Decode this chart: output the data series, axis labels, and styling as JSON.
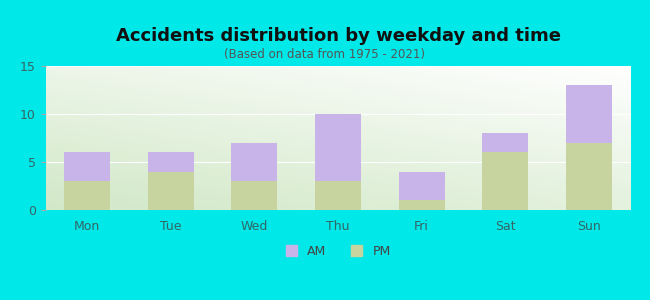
{
  "categories": [
    "Mon",
    "Tue",
    "Wed",
    "Thu",
    "Fri",
    "Sat",
    "Sun"
  ],
  "pm_values": [
    3,
    4,
    3,
    3,
    1,
    6,
    7
  ],
  "am_values": [
    3,
    2,
    4,
    7,
    3,
    2,
    6
  ],
  "am_color": "#c8b4e8",
  "pm_color": "#c8d4a0",
  "title": "Accidents distribution by weekday and time",
  "subtitle": "(Based on data from 1975 - 2021)",
  "ylim": [
    0,
    15
  ],
  "yticks": [
    0,
    5,
    10,
    15
  ],
  "background_color": "#00e8e8",
  "title_fontsize": 13,
  "subtitle_fontsize": 8.5,
  "bar_width": 0.55
}
